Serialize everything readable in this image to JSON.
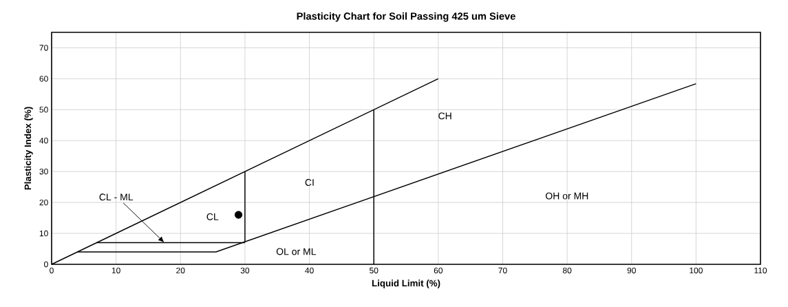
{
  "chart_data": {
    "type": "scatter",
    "title": "Plasticity Chart for Soil Passing 425 um Sieve",
    "xlabel": "Liquid Limit (%)",
    "ylabel": "Plasticity Index (%)",
    "xlim": [
      0,
      110
    ],
    "ylim": [
      0,
      75
    ],
    "xticks": [
      0,
      10,
      20,
      30,
      40,
      50,
      60,
      70,
      80,
      90,
      100,
      110
    ],
    "yticks": [
      0,
      10,
      20,
      30,
      40,
      50,
      60,
      70
    ],
    "grid": true,
    "series": [
      {
        "type": "line",
        "color": "#000000",
        "x": [
          0,
          60
        ],
        "values": [
          0,
          60
        ]
      },
      {
        "type": "line",
        "color": "#000000",
        "x": [
          4,
          25.5,
          100
        ],
        "values": [
          4,
          4,
          58.4
        ]
      },
      {
        "type": "line",
        "color": "#000000",
        "x": [
          7,
          30
        ],
        "values": [
          7,
          7
        ]
      },
      {
        "type": "line",
        "color": "#000000",
        "x": [
          30,
          30
        ],
        "values": [
          7.3,
          30
        ]
      },
      {
        "type": "line",
        "color": "#000000",
        "x": [
          50,
          50
        ],
        "values": [
          0,
          50
        ]
      },
      {
        "color": "#000000",
        "x": [
          29
        ],
        "values": [
          16
        ]
      }
    ],
    "annotations": [
      {
        "text": "CL - ML",
        "x": 17.5,
        "y": 7
      },
      "CL",
      "CI",
      "CH",
      "OH or MH",
      "OL or ML"
    ]
  }
}
